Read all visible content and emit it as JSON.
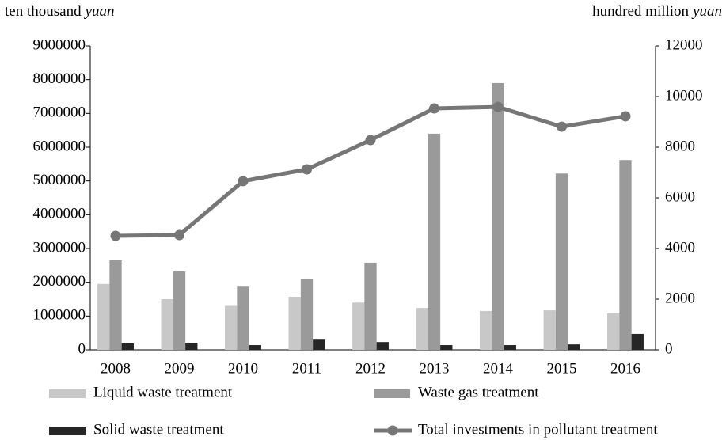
{
  "chart_data": {
    "type": "bar_line",
    "y_label": [
      "ten thousand",
      "yuan"
    ],
    "y2_label": [
      "hundred million",
      "yuan"
    ],
    "categories": [
      "2008",
      "2009",
      "2010",
      "2011",
      "2012",
      "2013",
      "2014",
      "2015",
      "2016"
    ],
    "series": [
      {
        "name": "Liquid waste treatment",
        "color": "#c8c8c8",
        "type": "bar",
        "values": [
          1950000,
          1500000,
          1300000,
          1570000,
          1400000,
          1240000,
          1150000,
          1170000,
          1080000
        ]
      },
      {
        "name": "Waste gas treatment",
        "color": "#9a9a9a",
        "type": "bar",
        "values": [
          2650000,
          2320000,
          1870000,
          2110000,
          2580000,
          6400000,
          7900000,
          5220000,
          5620000
        ]
      },
      {
        "name": "Solid waste treatment",
        "color": "#262626",
        "type": "bar",
        "values": [
          190000,
          210000,
          140000,
          300000,
          230000,
          140000,
          140000,
          160000,
          470000
        ]
      },
      {
        "name": "Total investments in pollutant treatment",
        "color": "#767676",
        "type": "line",
        "axis": "y2",
        "values": [
          4500,
          4530,
          6660,
          7125,
          8280,
          9530,
          9590,
          8810,
          9220
        ]
      }
    ],
    "ylim": [
      0,
      9000000
    ],
    "yticks": [
      0,
      1000000,
      2000000,
      3000000,
      4000000,
      5000000,
      6000000,
      7000000,
      8000000,
      9000000
    ],
    "y2lim": [
      0,
      12000
    ],
    "y2ticks": [
      0,
      2000,
      4000,
      6000,
      8000,
      10000,
      12000
    ],
    "grid": false
  }
}
